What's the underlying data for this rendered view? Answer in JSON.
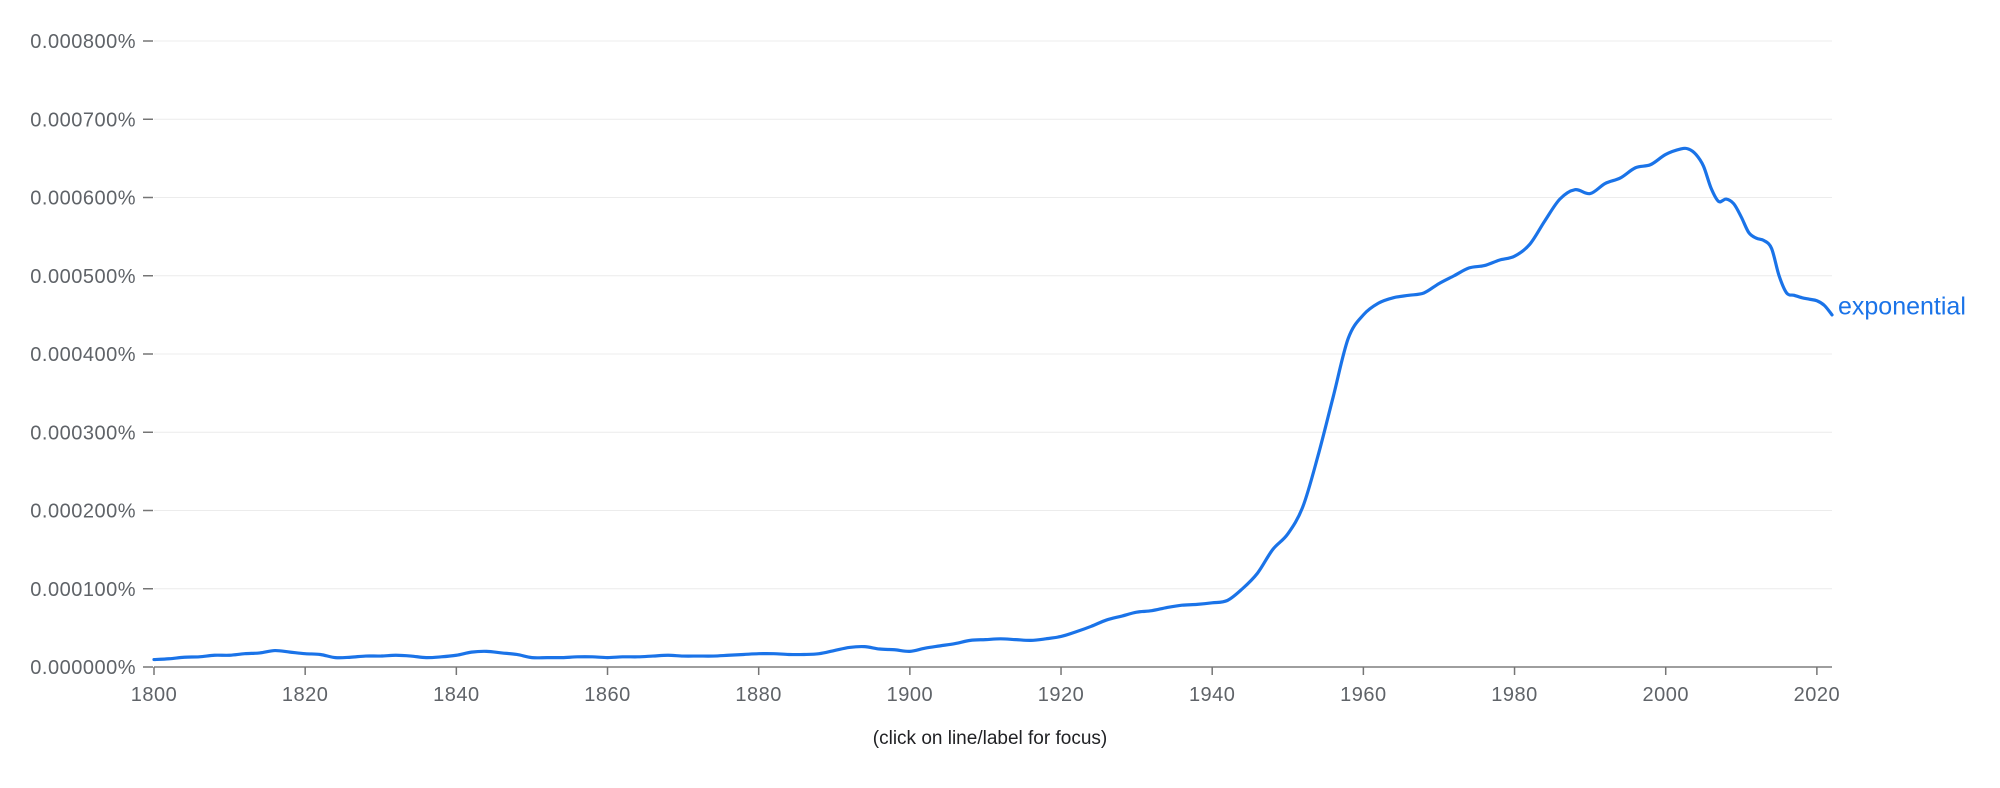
{
  "chart_data": {
    "type": "line",
    "title": "",
    "xlabel": "",
    "ylabel": "",
    "xlim": [
      1800,
      2022
    ],
    "ylim": [
      0,
      0.0008
    ],
    "grid": true,
    "legend": "inline-right",
    "x_ticks": [
      1800,
      1820,
      1840,
      1860,
      1880,
      1900,
      1920,
      1940,
      1960,
      1980,
      2000,
      2020
    ],
    "x_tick_labels": [
      "1800",
      "1820",
      "1840",
      "1860",
      "1880",
      "1900",
      "1920",
      "1940",
      "1960",
      "1980",
      "2000",
      "2020"
    ],
    "y_ticks": [
      0,
      0.0001,
      0.0002,
      0.0003,
      0.0004,
      0.0005,
      0.0006,
      0.0007,
      0.0008
    ],
    "y_tick_labels": [
      "0.000000%",
      "0.000100%",
      "0.000200%",
      "0.000300%",
      "0.000400%",
      "0.000500%",
      "0.000600%",
      "0.000700%",
      "0.000800%"
    ],
    "series": [
      {
        "name": "exponential",
        "color": "#1a73e8",
        "x": [
          1800,
          1802,
          1804,
          1806,
          1808,
          1810,
          1812,
          1814,
          1816,
          1818,
          1820,
          1822,
          1824,
          1826,
          1828,
          1830,
          1832,
          1834,
          1836,
          1838,
          1840,
          1842,
          1844,
          1846,
          1848,
          1850,
          1852,
          1854,
          1856,
          1858,
          1860,
          1862,
          1864,
          1866,
          1868,
          1870,
          1872,
          1874,
          1876,
          1878,
          1880,
          1882,
          1884,
          1886,
          1888,
          1890,
          1892,
          1894,
          1896,
          1898,
          1900,
          1902,
          1904,
          1906,
          1908,
          1910,
          1912,
          1914,
          1916,
          1918,
          1920,
          1922,
          1924,
          1926,
          1928,
          1930,
          1932,
          1934,
          1936,
          1938,
          1940,
          1942,
          1944,
          1946,
          1948,
          1950,
          1952,
          1954,
          1956,
          1958,
          1960,
          1962,
          1964,
          1966,
          1968,
          1970,
          1972,
          1974,
          1976,
          1978,
          1980,
          1982,
          1984,
          1986,
          1988,
          1990,
          1992,
          1994,
          1996,
          1998,
          2000,
          2002,
          2003,
          2004,
          2005,
          2006,
          2007,
          2008,
          2009,
          2010,
          2011,
          2012,
          2013,
          2014,
          2015,
          2016,
          2017,
          2018,
          2019,
          2020,
          2021,
          2022
        ],
        "values": [
          9.5e-06,
          1.05e-05,
          1.25e-05,
          1.3e-05,
          1.5e-05,
          1.5e-05,
          1.7e-05,
          1.8e-05,
          2.1e-05,
          1.9e-05,
          1.7e-05,
          1.6e-05,
          1.2e-05,
          1.25e-05,
          1.4e-05,
          1.4e-05,
          1.5e-05,
          1.4e-05,
          1.2e-05,
          1.3e-05,
          1.5e-05,
          1.9e-05,
          2e-05,
          1.8e-05,
          1.6e-05,
          1.2e-05,
          1.2e-05,
          1.2e-05,
          1.3e-05,
          1.3e-05,
          1.2e-05,
          1.3e-05,
          1.3e-05,
          1.4e-05,
          1.5e-05,
          1.4e-05,
          1.4e-05,
          1.4e-05,
          1.5e-05,
          1.6e-05,
          1.7e-05,
          1.7e-05,
          1.6e-05,
          1.6e-05,
          1.7e-05,
          2.1e-05,
          2.5e-05,
          2.6e-05,
          2.3e-05,
          2.2e-05,
          2e-05,
          2.4e-05,
          2.7e-05,
          3e-05,
          3.4e-05,
          3.5e-05,
          3.6e-05,
          3.5e-05,
          3.4e-05,
          3.6e-05,
          3.9e-05,
          4.5e-05,
          5.2e-05,
          6e-05,
          6.5e-05,
          7e-05,
          7.2e-05,
          7.6e-05,
          7.9e-05,
          8e-05,
          8.2e-05,
          8.5e-05,
          0.0001,
          0.00012,
          0.00015,
          0.00017,
          0.000205,
          0.00027,
          0.000345,
          0.00042,
          0.00045,
          0.000465,
          0.000472,
          0.000475,
          0.000478,
          0.00049,
          0.0005,
          0.00051,
          0.000513,
          0.00052,
          0.000525,
          0.00054,
          0.00057,
          0.000598,
          0.00061,
          0.000605,
          0.000618,
          0.000625,
          0.000638,
          0.000642,
          0.000655,
          0.000662,
          0.000662,
          0.000655,
          0.00064,
          0.000612,
          0.000595,
          0.000598,
          0.000592,
          0.000575,
          0.000555,
          0.000548,
          0.000545,
          0.000535,
          0.0005,
          0.000478,
          0.000475,
          0.000472,
          0.00047,
          0.000468,
          0.000462,
          0.00045
        ]
      }
    ]
  },
  "footnote": "(click on line/label for focus)"
}
